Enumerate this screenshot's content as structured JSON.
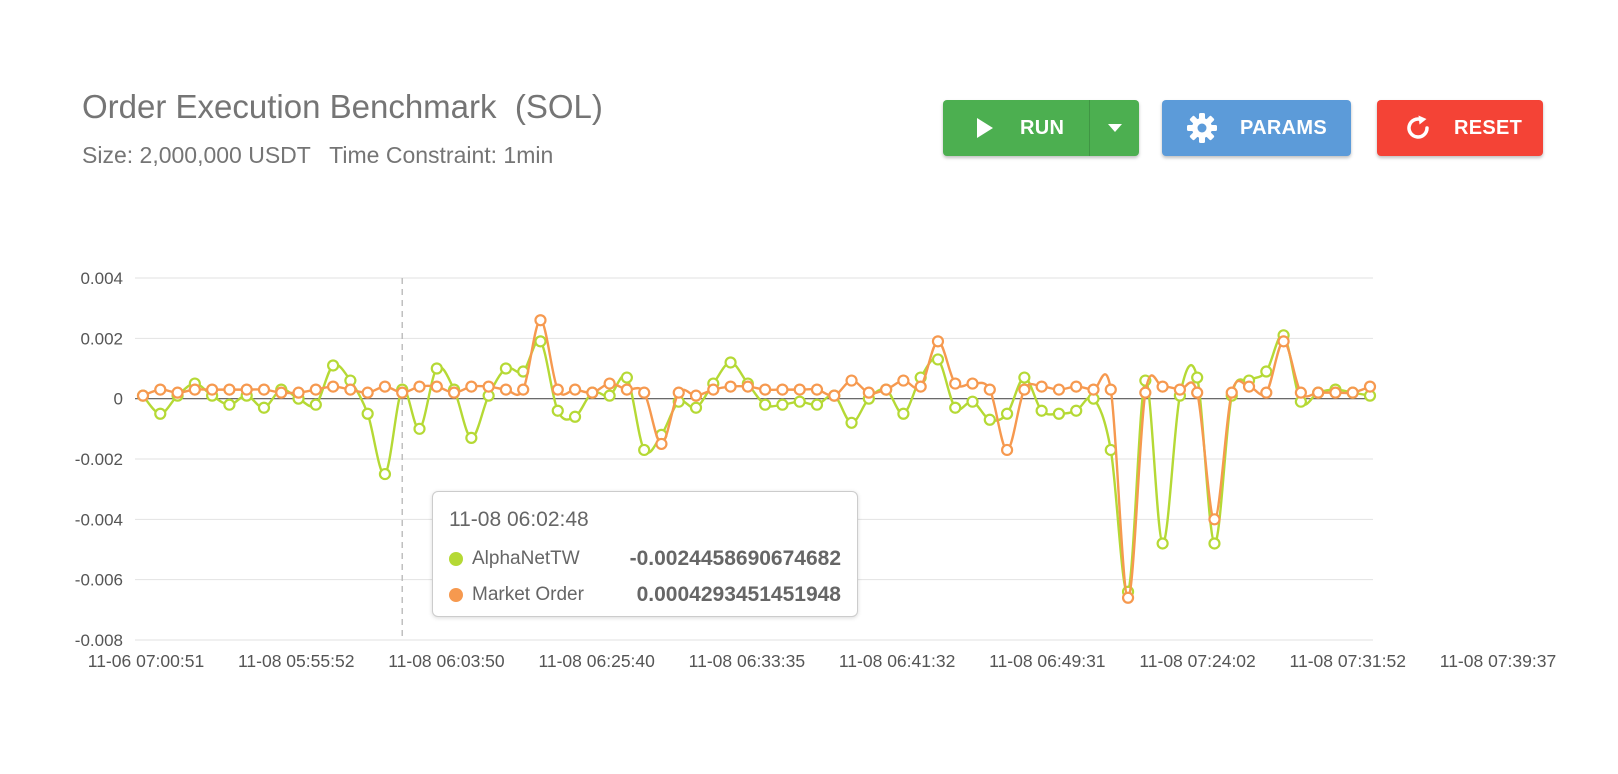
{
  "header": {
    "title": "Order Execution Benchmark  (SOL)",
    "subtitle": "Size: 2,000,000 USDT   Time Constraint: 1min"
  },
  "toolbar": {
    "run_label": "RUN",
    "params_label": "PARAMS",
    "reset_label": "RESET",
    "run_color": "#4caf50",
    "params_color": "#5c9bd9",
    "reset_color": "#f44336"
  },
  "icons": {
    "run": "play-icon",
    "run_menu": "caret-down-icon",
    "params": "gear-icon",
    "reset": "refresh-icon"
  },
  "tooltip": {
    "time": "11-08 06:02:48",
    "rows": [
      {
        "name": "AlphaNetTW",
        "value": "-0.0024458690674682",
        "color": "#b5d935"
      },
      {
        "name": "Market Order",
        "value": "0.0004293451451948",
        "color": "#f6994f"
      }
    ]
  },
  "chart_data": {
    "type": "line",
    "ylim": [
      -0.008,
      0.004
    ],
    "y_ticks": [
      "0.004",
      "0.002",
      "0",
      "-0.002",
      "-0.004",
      "-0.006",
      "-0.008"
    ],
    "x_tick_labels": [
      "11-06 07:00:51",
      "11-08 05:55:52",
      "11-08 06:03:50",
      "11-08 06:25:40",
      "11-08 06:33:35",
      "11-08 06:41:32",
      "11-08 06:49:31",
      "11-08 07:24:02",
      "11-08 07:31:52",
      "11-08 07:39:37"
    ],
    "grid": true,
    "highlight_index": 15,
    "series": [
      {
        "name": "AlphaNetTW",
        "color": "#b5d935",
        "values": [
          0.0001,
          -0.0005,
          0.0001,
          0.0005,
          0.0001,
          -0.0002,
          0.0001,
          -0.0003,
          0.0003,
          0.0,
          -0.0002,
          0.0011,
          0.0006,
          -0.0005,
          -0.0025,
          0.0003,
          -0.001,
          0.001,
          0.0003,
          -0.0013,
          0.0001,
          0.001,
          0.0009,
          0.0019,
          -0.0004,
          -0.0006,
          0.0002,
          0.0001,
          0.0007,
          -0.0017,
          -0.0012,
          -0.0001,
          -0.0003,
          0.0005,
          0.0012,
          0.0005,
          -0.0002,
          -0.0002,
          -0.0001,
          -0.0002,
          0.0001,
          -0.0008,
          0.0,
          0.0003,
          -0.0005,
          0.0007,
          0.0013,
          -0.0003,
          -0.0001,
          -0.0007,
          -0.0005,
          0.0007,
          -0.0004,
          -0.0005,
          -0.0004,
          0.0,
          -0.0017,
          -0.0064,
          0.0006,
          -0.0048,
          0.0001,
          0.0007,
          -0.0048,
          0.0001,
          0.0006,
          0.0009,
          0.0021,
          -0.0001,
          0.0002,
          0.0003,
          0.0002,
          0.0001
        ]
      },
      {
        "name": "Market Order",
        "color": "#f6994f",
        "values": [
          0.0001,
          0.0003,
          0.0002,
          0.0003,
          0.0003,
          0.0003,
          0.0003,
          0.0003,
          0.0002,
          0.0002,
          0.0003,
          0.0004,
          0.0003,
          0.0002,
          0.0004,
          0.0002,
          0.0004,
          0.0004,
          0.0002,
          0.0004,
          0.0004,
          0.0003,
          0.0003,
          0.0026,
          0.0003,
          0.0003,
          0.0002,
          0.0005,
          0.0003,
          0.0002,
          -0.0015,
          0.0002,
          0.0001,
          0.0003,
          0.0004,
          0.0004,
          0.0003,
          0.0003,
          0.0003,
          0.0003,
          0.0001,
          0.0006,
          0.0002,
          0.0003,
          0.0006,
          0.0004,
          0.0019,
          0.0005,
          0.0005,
          0.0003,
          -0.0017,
          0.0003,
          0.0004,
          0.0003,
          0.0004,
          0.0003,
          0.0003,
          -0.0066,
          0.0002,
          0.0004,
          0.0003,
          0.0002,
          -0.004,
          0.0002,
          0.0004,
          0.0002,
          0.0019,
          0.0002,
          0.0002,
          0.0002,
          0.0002,
          0.0004
        ]
      }
    ]
  }
}
